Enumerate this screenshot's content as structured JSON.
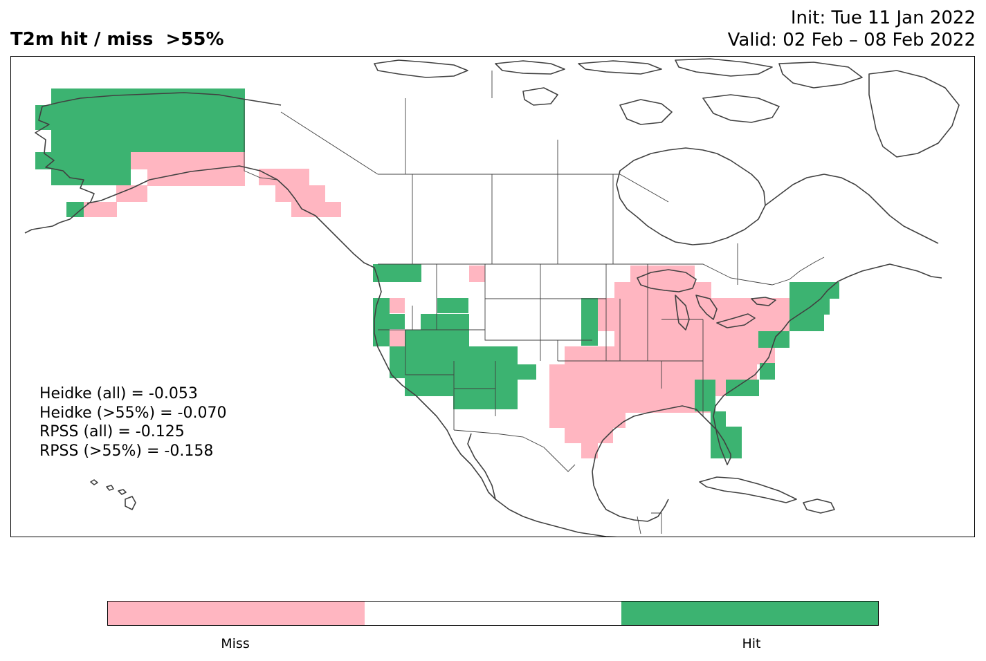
{
  "header": {
    "title": "T2m hit / miss  >55%",
    "init": "Init: Tue 11 Jan 2022",
    "valid": "Valid: 02 Feb – 08 Feb 2022"
  },
  "stats": [
    "Heidke (all) = -0.053",
    "Heidke (>55%) = -0.070",
    "RPSS (all) = -0.125",
    "RPSS (>55%) = -0.158"
  ],
  "legend": {
    "miss_label": "Miss",
    "hit_label": "Hit",
    "miss_color": "#FFB6C1",
    "neutral_color": "#FFFFFF",
    "hit_color": "#3CB371"
  },
  "map": {
    "region": "North America",
    "coastline_color": "#404040",
    "cell_states": [
      "hit",
      "miss"
    ]
  }
}
